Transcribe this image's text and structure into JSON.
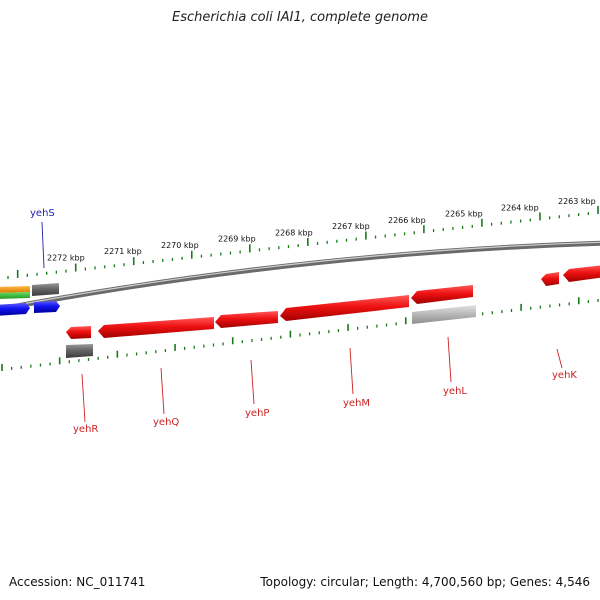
{
  "title": "Escherichia coli IAI1, complete genome",
  "footer": {
    "accession": "Accession: NC_011741",
    "summary": "Topology: circular; Length: 4,700,560 bp; Genes: 4,546"
  },
  "colors": {
    "gene_red": "#ee1111",
    "gene_gray": "#666666",
    "gene_light_gray": "#bbbbbb",
    "gene_blue": "#1111ee",
    "gene_orange": "#ee8800",
    "gene_green": "#33bb33",
    "tick_green": "#1a7a1a",
    "backbone": "#888888",
    "label_red": "#cc2222",
    "label_blue": "#2222aa"
  },
  "ticks": [
    {
      "label": "2272 kbp"
    },
    {
      "label": "2271 kbp"
    },
    {
      "label": "2270 kbp"
    },
    {
      "label": "2269 kbp"
    },
    {
      "label": "2268 kbp"
    },
    {
      "label": "2267 kbp"
    },
    {
      "label": "2266 kbp"
    },
    {
      "label": "2265 kbp"
    },
    {
      "label": "2264 kbp"
    },
    {
      "label": "2263 kbp"
    }
  ],
  "gene_labels": [
    {
      "name": "yehS",
      "color": "blue"
    },
    {
      "name": "yehR",
      "color": "red"
    },
    {
      "name": "yehQ",
      "color": "red"
    },
    {
      "name": "yehP",
      "color": "red"
    },
    {
      "name": "yehM",
      "color": "red"
    },
    {
      "name": "yehL",
      "color": "red"
    },
    {
      "name": "yehK",
      "color": "red"
    }
  ]
}
